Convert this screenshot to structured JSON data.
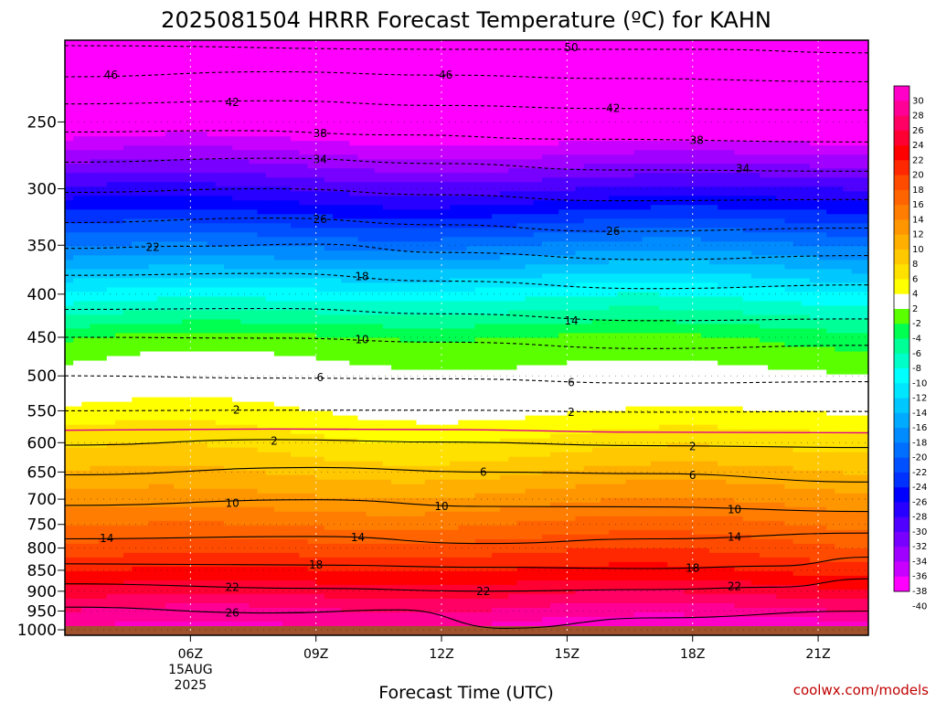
{
  "chart_data": {
    "type": "heatmap",
    "title": "2025081504 HRRR Forecast Temperature (ºC) for KAHN",
    "xlabel": "Forecast Time (UTC)",
    "ylabel": "",
    "x_ticks": [
      "06Z",
      "09Z",
      "12Z",
      "15Z",
      "18Z",
      "21Z"
    ],
    "x_tick_date_lines": [
      "15AUG",
      "2025"
    ],
    "y_ticks": [
      250,
      300,
      350,
      400,
      450,
      500,
      550,
      600,
      650,
      700,
      750,
      800,
      850,
      900,
      950,
      1000
    ],
    "y_axis": "pressure (hPa), log scale, inverted",
    "ylim": [
      200,
      1015
    ],
    "x_range_hours_utc": [
      3.0,
      22.2
    ],
    "surface_pressure": 990,
    "colorbar": {
      "ticks": [
        30,
        28,
        26,
        24,
        22,
        20,
        18,
        16,
        14,
        12,
        10,
        8,
        6,
        4,
        2,
        -2,
        -4,
        -6,
        -8,
        -10,
        -12,
        -14,
        -16,
        -18,
        -20,
        -22,
        -24,
        -26,
        -28,
        -30,
        -32,
        -34,
        -36,
        -38,
        -40
      ],
      "colors": [
        "#ff00c8",
        "#ff0096",
        "#ff0064",
        "#ff0032",
        "#ff0000",
        "#ff2800",
        "#ff4b00",
        "#ff6400",
        "#ff7d00",
        "#ff9600",
        "#ffaf00",
        "#ffc800",
        "#ffe100",
        "#ffff00",
        "#ffffff",
        "#5aff00",
        "#00ff50",
        "#00ff96",
        "#00ffc8",
        "#00ffff",
        "#00e6ff",
        "#00c8ff",
        "#00aaff",
        "#008cff",
        "#006eff",
        "#0050ff",
        "#0032ff",
        "#0000ff",
        "#2800ff",
        "#5000ff",
        "#7800ff",
        "#a000ff",
        "#c800ff",
        "#ff00ff"
      ]
    },
    "profiles": [
      {
        "x": 3,
        "temps": [
          -49,
          -41,
          -30,
          -20,
          -11,
          -4,
          2,
          8,
          14,
          20,
          26,
          28
        ]
      },
      {
        "x": 6,
        "temps": [
          -49,
          -41,
          -30,
          -20,
          -11,
          -4,
          2,
          8,
          14,
          20,
          26,
          28
        ]
      },
      {
        "x": 9,
        "temps": [
          -49,
          -41,
          -30,
          -20,
          -11,
          -4,
          2,
          8,
          14,
          20,
          26,
          28
        ]
      },
      {
        "x": 12,
        "temps": [
          -49,
          -41,
          -30,
          -20,
          -11,
          -4,
          2,
          8,
          14,
          20,
          26,
          29
        ]
      },
      {
        "x": 15,
        "temps": [
          -49,
          -41,
          -30,
          -20,
          -11,
          -4,
          2,
          8,
          14,
          20,
          27,
          30
        ]
      },
      {
        "x": 18,
        "temps": [
          -49,
          -41,
          -30,
          -20,
          -11,
          -4,
          2,
          8,
          14,
          20,
          27,
          31
        ]
      },
      {
        "x": 21,
        "temps": [
          -49,
          -41,
          -30,
          -20,
          -11,
          -4,
          2,
          8,
          14,
          20,
          27,
          31
        ]
      },
      {
        "x": 22.2,
        "temps": [
          -49,
          -41,
          -30,
          -20,
          -11,
          -4,
          2,
          8,
          14,
          20,
          27,
          31
        ]
      }
    ],
    "profile_pressures": [
      200,
      250,
      300,
      350,
      400,
      450,
      550,
      650,
      750,
      850,
      950,
      1000
    ],
    "contours": [
      {
        "level": -50,
        "style": "dashed",
        "pts": [
          [
            3,
            203
          ],
          [
            12,
            205
          ],
          [
            18,
            205
          ],
          [
            22.2,
            207
          ]
        ]
      },
      {
        "level": -46,
        "style": "dashed",
        "pts": [
          [
            3,
            221
          ],
          [
            8,
            218
          ],
          [
            12,
            220
          ],
          [
            16,
            222
          ],
          [
            22.2,
            224
          ]
        ]
      },
      {
        "level": -42,
        "style": "dashed",
        "pts": [
          [
            3,
            238
          ],
          [
            8,
            236
          ],
          [
            12,
            239
          ],
          [
            16,
            241
          ],
          [
            22.2,
            242
          ]
        ]
      },
      {
        "level": -38,
        "style": "dashed",
        "pts": [
          [
            3,
            257
          ],
          [
            7,
            256
          ],
          [
            11,
            259
          ],
          [
            15,
            262
          ],
          [
            22.2,
            264
          ]
        ]
      },
      {
        "level": -34,
        "style": "dashed",
        "pts": [
          [
            3,
            279
          ],
          [
            8,
            276
          ],
          [
            12,
            280
          ],
          [
            16,
            285
          ],
          [
            22.2,
            286
          ]
        ]
      },
      {
        "level": -30,
        "style": "dashed",
        "pts": [
          [
            3,
            303
          ],
          [
            8,
            300
          ],
          [
            12,
            305
          ],
          [
            16,
            310
          ],
          [
            22.2,
            309
          ]
        ]
      },
      {
        "level": -26,
        "style": "dashed",
        "pts": [
          [
            3,
            329
          ],
          [
            8,
            325
          ],
          [
            12,
            331
          ],
          [
            16,
            337
          ],
          [
            22.2,
            334
          ]
        ]
      },
      {
        "level": -22,
        "style": "dashed",
        "pts": [
          [
            3,
            353
          ],
          [
            6,
            351
          ],
          [
            9,
            349
          ],
          [
            12,
            357
          ],
          [
            17,
            364
          ],
          [
            22.2,
            360
          ]
        ]
      },
      {
        "level": -18,
        "style": "dashed",
        "pts": [
          [
            3,
            380
          ],
          [
            8,
            378
          ],
          [
            12,
            386
          ],
          [
            17,
            394
          ],
          [
            22.2,
            390
          ]
        ]
      },
      {
        "level": -14,
        "style": "dashed",
        "pts": [
          [
            3,
            417
          ],
          [
            8,
            416
          ],
          [
            12,
            422
          ],
          [
            17,
            430
          ],
          [
            22.2,
            428
          ]
        ]
      },
      {
        "level": -10,
        "style": "dashed",
        "pts": [
          [
            3,
            450
          ],
          [
            8,
            451
          ],
          [
            12,
            456
          ],
          [
            17,
            464
          ],
          [
            22.2,
            460
          ]
        ]
      },
      {
        "level": -6,
        "style": "dashed",
        "pts": [
          [
            3,
            500
          ],
          [
            8,
            503
          ],
          [
            12,
            504
          ],
          [
            17,
            510
          ],
          [
            22.2,
            508
          ]
        ]
      },
      {
        "level": -2,
        "style": "dashed",
        "pts": [
          [
            3,
            550
          ],
          [
            8,
            549
          ],
          [
            12,
            549
          ],
          [
            17,
            552
          ],
          [
            22.2,
            551
          ]
        ]
      },
      {
        "level": 0,
        "style": "solid-magenta",
        "pts": [
          [
            3,
            580
          ],
          [
            8,
            578
          ],
          [
            12,
            579
          ],
          [
            17,
            583
          ],
          [
            22.2,
            584
          ]
        ]
      },
      {
        "level": 2,
        "style": "solid",
        "pts": [
          [
            3,
            604
          ],
          [
            8,
            595
          ],
          [
            12,
            599
          ],
          [
            17,
            605
          ],
          [
            22.2,
            608
          ]
        ]
      },
      {
        "level": 6,
        "style": "solid",
        "pts": [
          [
            3,
            655
          ],
          [
            9,
            642
          ],
          [
            13,
            650
          ],
          [
            17,
            653
          ],
          [
            22.2,
            668
          ]
        ]
      },
      {
        "level": 10,
        "style": "solid",
        "pts": [
          [
            3,
            712
          ],
          [
            9,
            701
          ],
          [
            13,
            714
          ],
          [
            17,
            715
          ],
          [
            22.2,
            724
          ]
        ]
      },
      {
        "level": 14,
        "style": "solid",
        "pts": [
          [
            3,
            780
          ],
          [
            9,
            775
          ],
          [
            13,
            790
          ],
          [
            17,
            780
          ],
          [
            22.2,
            768
          ]
        ]
      },
      {
        "level": 18,
        "style": "solid",
        "pts": [
          [
            3,
            835
          ],
          [
            9,
            838
          ],
          [
            13,
            843
          ],
          [
            17,
            846
          ],
          [
            20,
            840
          ],
          [
            22.2,
            820
          ]
        ]
      },
      {
        "level": 22,
        "style": "solid",
        "pts": [
          [
            3,
            882
          ],
          [
            9,
            893
          ],
          [
            13,
            900
          ],
          [
            17,
            896
          ],
          [
            20,
            890
          ],
          [
            22.2,
            870
          ]
        ]
      },
      {
        "level": 26,
        "style": "solid",
        "pts": [
          [
            3,
            940
          ],
          [
            8,
            955
          ],
          [
            11,
            947
          ],
          [
            13.5,
            996
          ],
          [
            17,
            968
          ],
          [
            22.2,
            950
          ]
        ]
      }
    ],
    "labels": [
      {
        "text": "50",
        "x": 15.1,
        "p": 204
      },
      {
        "text": "46",
        "x": 4.1,
        "p": 220
      },
      {
        "text": "46",
        "x": 12.1,
        "p": 220
      },
      {
        "text": "42",
        "x": 7.0,
        "p": 237
      },
      {
        "text": "42",
        "x": 16.1,
        "p": 241
      },
      {
        "text": "38",
        "x": 9.1,
        "p": 258
      },
      {
        "text": "38",
        "x": 18.1,
        "p": 263
      },
      {
        "text": "34",
        "x": 9.1,
        "p": 277
      },
      {
        "text": "34",
        "x": 19.2,
        "p": 284
      },
      {
        "text": "26",
        "x": 9.1,
        "p": 326
      },
      {
        "text": "26",
        "x": 16.1,
        "p": 337
      },
      {
        "text": "22",
        "x": 5.1,
        "p": 352
      },
      {
        "text": "18",
        "x": 10.1,
        "p": 381
      },
      {
        "text": "14",
        "x": 15.1,
        "p": 430
      },
      {
        "text": "10",
        "x": 10.1,
        "p": 453
      },
      {
        "text": "6",
        "x": 9.1,
        "p": 502
      },
      {
        "text": "6",
        "x": 15.1,
        "p": 509
      },
      {
        "text": "2",
        "x": 7.1,
        "p": 549
      },
      {
        "text": "2",
        "x": 15.1,
        "p": 552
      },
      {
        "text": "2",
        "x": 8.0,
        "p": 597
      },
      {
        "text": "2",
        "x": 18.0,
        "p": 606
      },
      {
        "text": "6",
        "x": 13.0,
        "p": 650
      },
      {
        "text": "6",
        "x": 18.0,
        "p": 656
      },
      {
        "text": "10",
        "x": 7.0,
        "p": 708
      },
      {
        "text": "10",
        "x": 12.0,
        "p": 714
      },
      {
        "text": "10",
        "x": 19.0,
        "p": 720
      },
      {
        "text": "14",
        "x": 4.0,
        "p": 779
      },
      {
        "text": "14",
        "x": 10.0,
        "p": 777
      },
      {
        "text": "14",
        "x": 19.0,
        "p": 776
      },
      {
        "text": "18",
        "x": 9.0,
        "p": 838
      },
      {
        "text": "18",
        "x": 18.0,
        "p": 845
      },
      {
        "text": "22",
        "x": 7.0,
        "p": 890
      },
      {
        "text": "22",
        "x": 13.0,
        "p": 900
      },
      {
        "text": "22",
        "x": 19.0,
        "p": 888
      },
      {
        "text": "26",
        "x": 7.0,
        "p": 955
      }
    ],
    "credit": "coolwx.com/models"
  }
}
